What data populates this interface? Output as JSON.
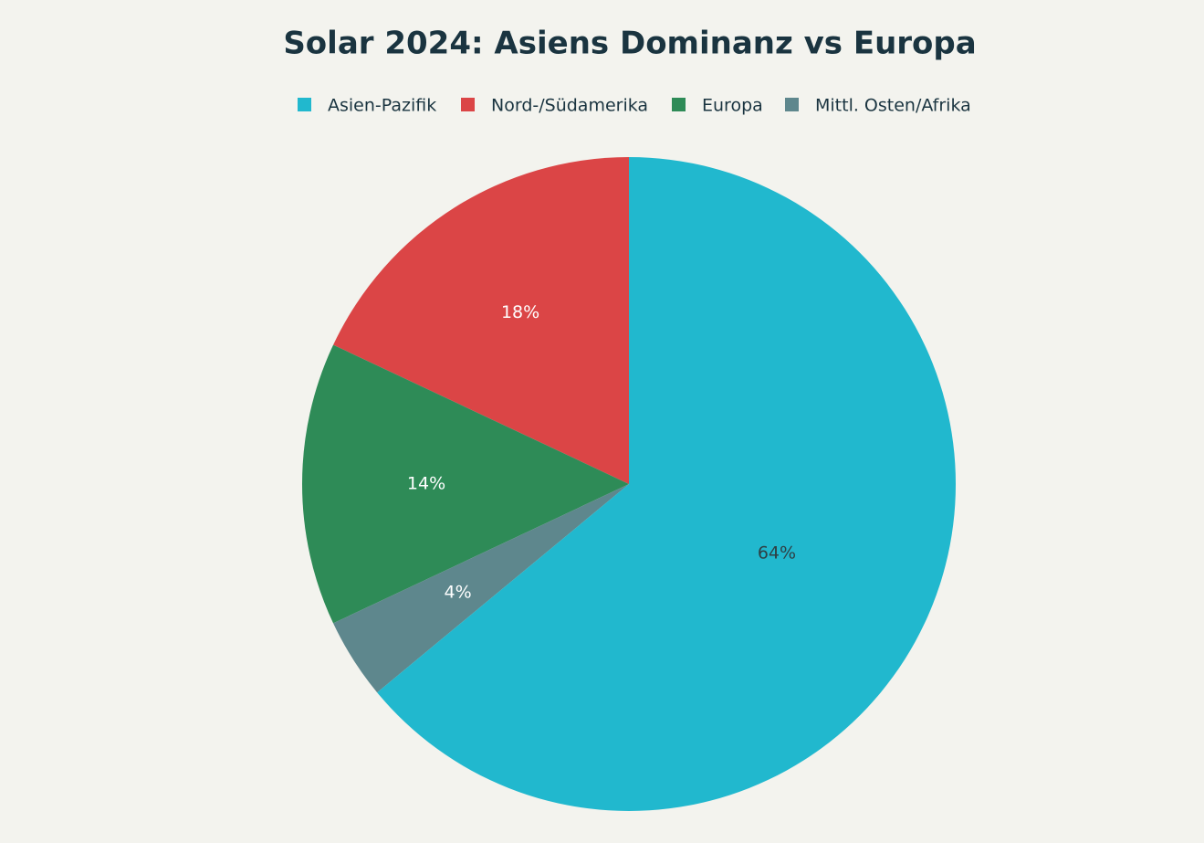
{
  "chart_data": {
    "type": "pie",
    "title": "Solar 2024: Asiens Dominanz vs Europa",
    "categories": [
      "Asien-Pazifik",
      "Nord-/Südamerika",
      "Europa",
      "Mittl. Osten/Afrika"
    ],
    "values": [
      64,
      18,
      14,
      4
    ],
    "value_labels": [
      "64%",
      "18%",
      "14%",
      "4%"
    ],
    "colors": [
      "#21b8ce",
      "#db4546",
      "#2e8b57",
      "#5e878d"
    ]
  }
}
